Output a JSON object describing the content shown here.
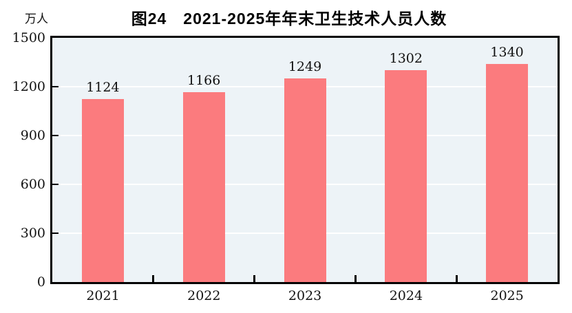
{
  "page": {
    "title": "图24　2021-2025年年末卫生技术人员人数",
    "unit_label": "万人"
  },
  "chart_data": {
    "type": "bar",
    "title": "图24　2021-2025年年末卫生技术人员人数",
    "ylabel": "万人",
    "xlabel": "",
    "categories": [
      "2021",
      "2022",
      "2023",
      "2024",
      "2025"
    ],
    "values": [
      1124,
      1166,
      1249,
      1302,
      1340
    ],
    "ylim": [
      0,
      1500
    ],
    "yticks": [
      0,
      300,
      600,
      900,
      1200,
      1500
    ],
    "grid": "horizontal",
    "legend_position": "none",
    "colors": {
      "bar": "#FB7B7E",
      "plot_background": "#EDF3F7",
      "gridline": "#FFFFFF",
      "axis_frame": "#000000",
      "text": "#111111",
      "page_background": "#FFFFFF"
    }
  }
}
